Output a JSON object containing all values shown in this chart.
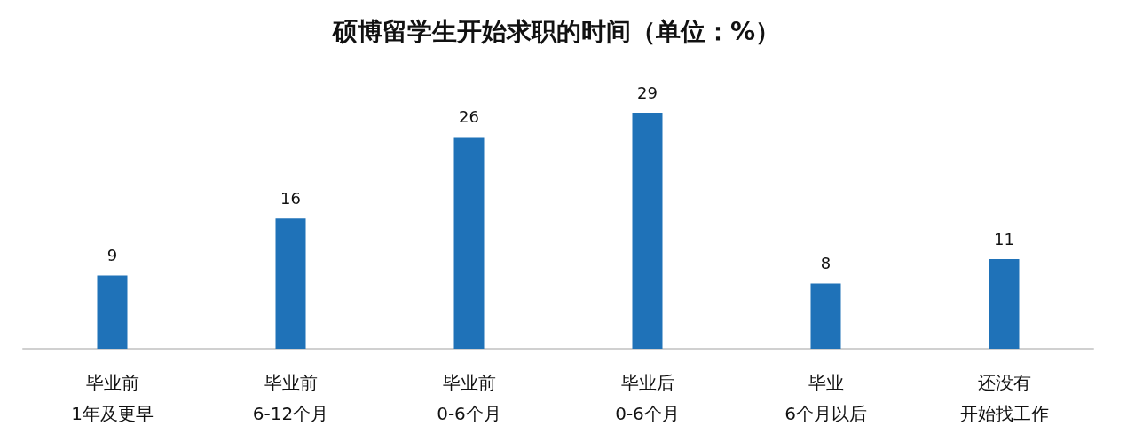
{
  "chart_data": {
    "type": "bar",
    "title": "硕博留学生开始求职的时间（单位：%）",
    "categories": [
      "毕业前\n1年及更早",
      "毕业前\n6-12个月",
      "毕业前\n0-6个月",
      "毕业后\n0-6个月",
      "毕业\n6个月以后",
      "还没有开始找工作"
    ],
    "values": [
      9,
      16,
      26,
      29,
      8,
      11
    ],
    "color": "#1f72b8",
    "data_labels": true,
    "grid": false,
    "tick_labels": "x"
  }
}
